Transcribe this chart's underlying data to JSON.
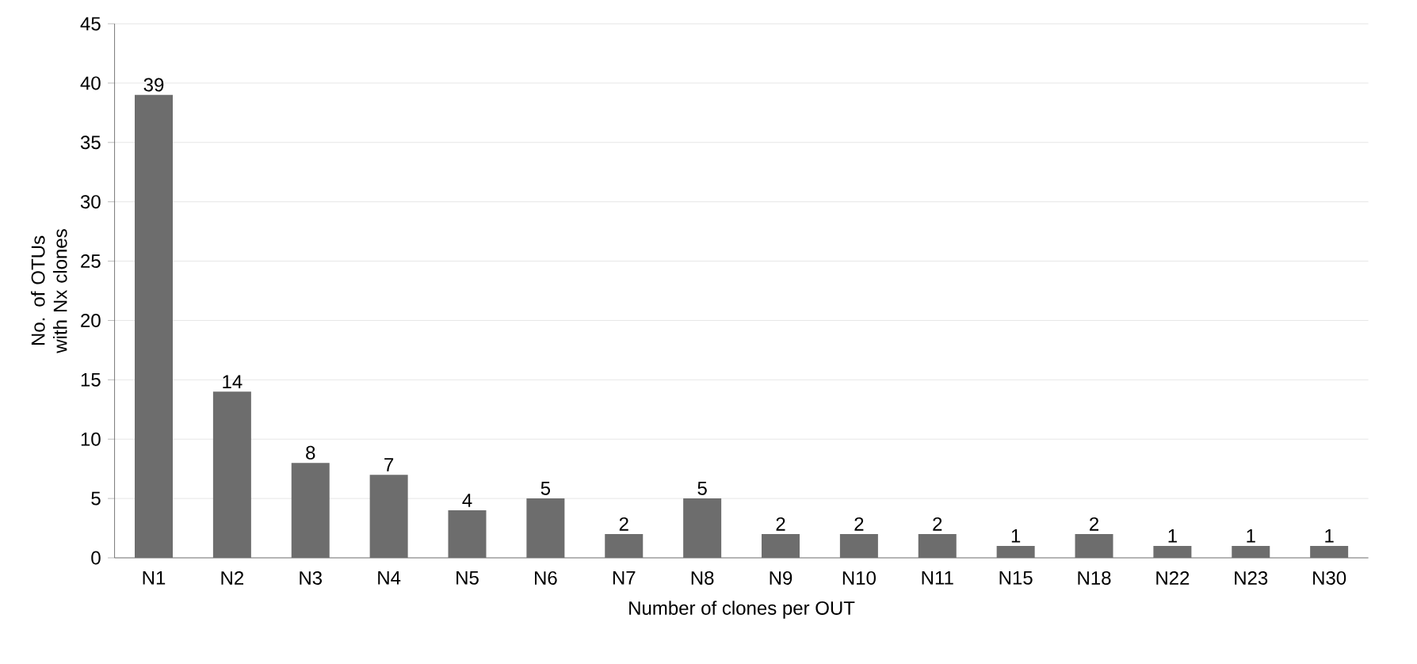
{
  "chart_data": {
    "type": "bar",
    "xlabel": "Number of clones per OUT",
    "ylabel": "No. of OTUs with Nx clones",
    "categories": [
      "N1",
      "N2",
      "N3",
      "N4",
      "N5",
      "N6",
      "N7",
      "N8",
      "N9",
      "N10",
      "N11",
      "N15",
      "N18",
      "N22",
      "N23",
      "N30"
    ],
    "values": [
      39,
      14,
      8,
      7,
      4,
      5,
      2,
      5,
      2,
      2,
      2,
      1,
      2,
      1,
      1,
      1
    ],
    "color": "#6d6d6d",
    "ylim": [
      0,
      45
    ],
    "yticks": [
      0,
      5,
      10,
      15,
      20,
      25,
      30,
      35,
      40,
      45
    ],
    "grid": "y",
    "data_labels": true
  }
}
